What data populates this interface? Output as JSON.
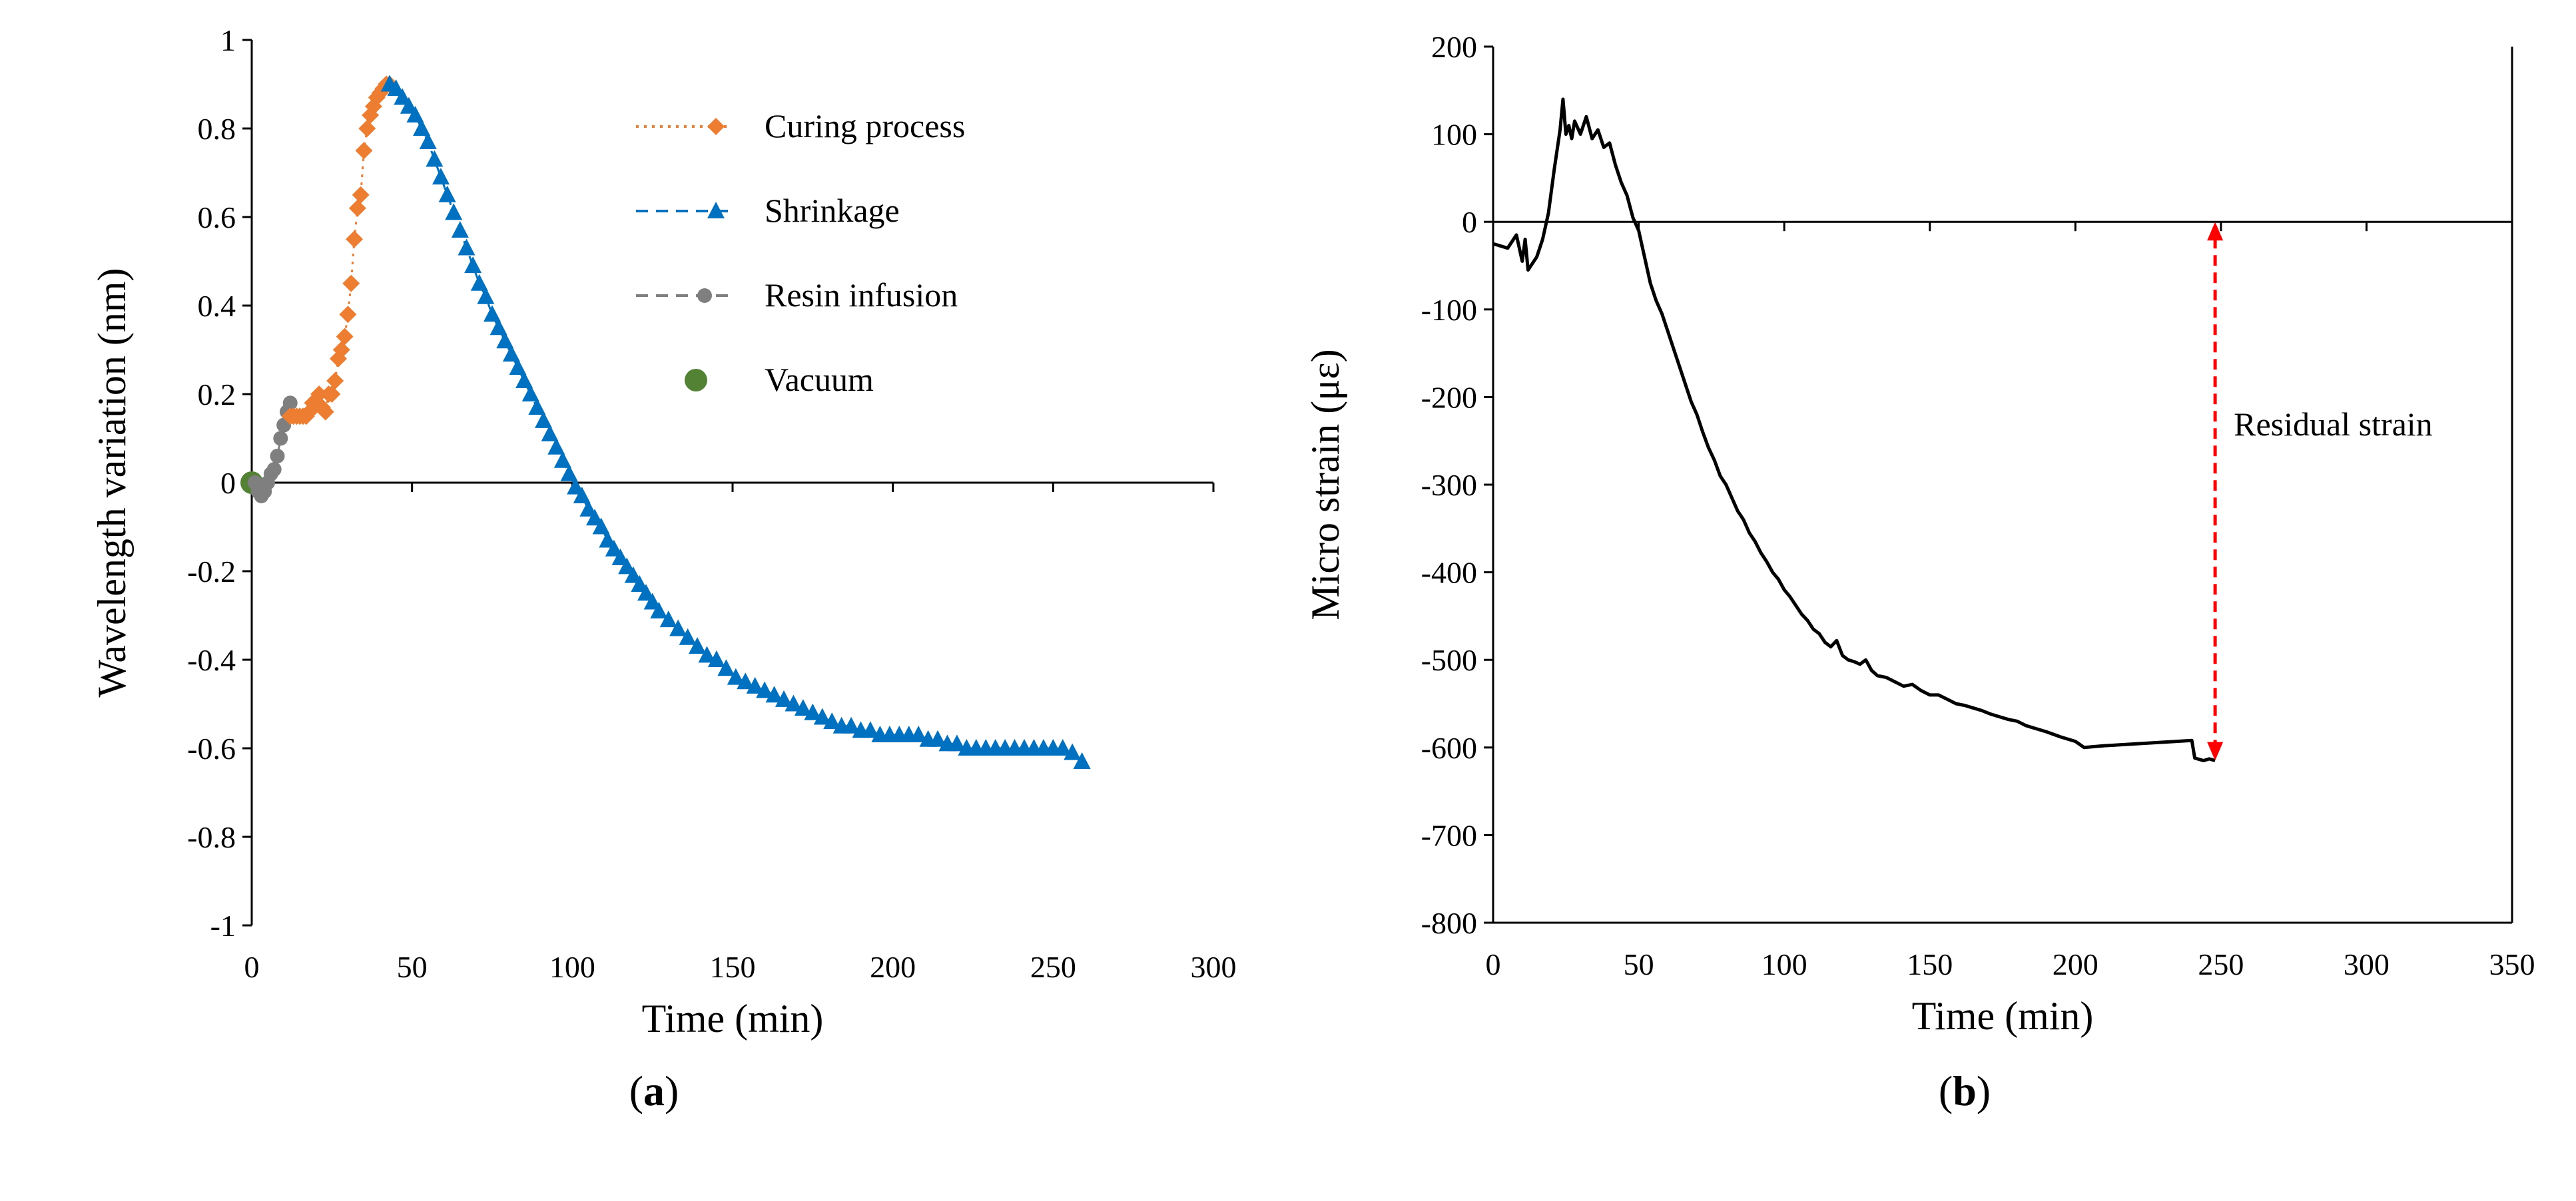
{
  "colors": {
    "curing": "#ED7D31",
    "shrinkage": "#0070C0",
    "resin": "#7F7F7F",
    "vacuum": "#548235",
    "strain": "#000000",
    "residual": "#FF0000"
  },
  "chart_data": [
    {
      "id": "a",
      "type": "scatter-line",
      "caption_paren_open": "(",
      "caption_letter": "a",
      "caption_paren_close": ")",
      "xlabel": "Time (min)",
      "ylabel": "Wavelength variation (nm)",
      "xlim": [
        0,
        300
      ],
      "ylim": [
        -1,
        1
      ],
      "xticks": [
        0,
        50,
        100,
        150,
        200,
        250,
        300
      ],
      "yticks": [
        -1,
        -0.8,
        -0.6,
        -0.4,
        -0.2,
        0,
        0.2,
        0.4,
        0.6,
        0.8,
        1
      ],
      "ytick_labels": [
        "-1",
        "-0.8",
        "-0.6",
        "-0.4",
        "-0.2",
        "0",
        "0.2",
        "0.4",
        "0.6",
        "0.8",
        "1"
      ],
      "legend": [
        {
          "key": "curing",
          "label": "Curing process",
          "marker": "diamond",
          "line": "dotted"
        },
        {
          "key": "shrinkage",
          "label": "Shrinkage",
          "marker": "triangle",
          "line": "dashed"
        },
        {
          "key": "resin",
          "label": "Resin infusion",
          "marker": "circle",
          "line": "dashed"
        },
        {
          "key": "vacuum",
          "label": "Vacuum",
          "marker": "big-circle",
          "line": "none"
        }
      ],
      "series": [
        {
          "name": "Vacuum",
          "key": "vacuum",
          "marker": "big-circle",
          "x": [
            0
          ],
          "y": [
            0
          ]
        },
        {
          "name": "Resin infusion",
          "key": "resin",
          "marker": "circle",
          "x": [
            1,
            2,
            3,
            4,
            5,
            6,
            7,
            8,
            9,
            10,
            11,
            12
          ],
          "y": [
            0,
            -0.02,
            -0.03,
            -0.02,
            0,
            0.02,
            0.03,
            0.06,
            0.1,
            0.13,
            0.16,
            0.18
          ]
        },
        {
          "name": "Curing process",
          "key": "curing",
          "marker": "diamond",
          "x": [
            12,
            13,
            14,
            15,
            16,
            17,
            18,
            19,
            20,
            21,
            22,
            23,
            24,
            25,
            26,
            27,
            28,
            29,
            30,
            31,
            32,
            33,
            34,
            35,
            36,
            37,
            38,
            39,
            40,
            41,
            42,
            43
          ],
          "y": [
            0.15,
            0.15,
            0.15,
            0.15,
            0.15,
            0.15,
            0.16,
            0.18,
            0.18,
            0.2,
            0.17,
            0.16,
            0.2,
            0.2,
            0.23,
            0.28,
            0.3,
            0.33,
            0.38,
            0.45,
            0.55,
            0.62,
            0.65,
            0.75,
            0.8,
            0.83,
            0.85,
            0.87,
            0.88,
            0.89,
            0.9,
            0.9
          ]
        },
        {
          "name": "Shrinkage",
          "key": "shrinkage",
          "marker": "triangle",
          "x": [
            43,
            45,
            47,
            49,
            51,
            53,
            55,
            57,
            59,
            61,
            63,
            65,
            67,
            69,
            71,
            73,
            75,
            77,
            79,
            81,
            83,
            85,
            87,
            89,
            91,
            93,
            95,
            97,
            99,
            101,
            103,
            105,
            107,
            109,
            111,
            113,
            115,
            117,
            119,
            121,
            123,
            125,
            127,
            130,
            133,
            136,
            139,
            142,
            145,
            148,
            151,
            154,
            157,
            160,
            163,
            166,
            169,
            172,
            175,
            178,
            181,
            184,
            187,
            190,
            193,
            196,
            199,
            202,
            205,
            208,
            211,
            214,
            217,
            220,
            223,
            226,
            229,
            232,
            235,
            238,
            241,
            244,
            247,
            250,
            253,
            256,
            259
          ],
          "y": [
            0.9,
            0.89,
            0.87,
            0.85,
            0.83,
            0.8,
            0.77,
            0.73,
            0.69,
            0.65,
            0.61,
            0.57,
            0.53,
            0.49,
            0.45,
            0.42,
            0.38,
            0.35,
            0.32,
            0.29,
            0.26,
            0.23,
            0.2,
            0.17,
            0.14,
            0.11,
            0.08,
            0.05,
            0.02,
            -0.01,
            -0.03,
            -0.06,
            -0.08,
            -0.1,
            -0.13,
            -0.15,
            -0.17,
            -0.19,
            -0.21,
            -0.23,
            -0.25,
            -0.27,
            -0.29,
            -0.31,
            -0.33,
            -0.35,
            -0.37,
            -0.39,
            -0.4,
            -0.42,
            -0.44,
            -0.45,
            -0.46,
            -0.47,
            -0.48,
            -0.49,
            -0.5,
            -0.51,
            -0.52,
            -0.53,
            -0.54,
            -0.55,
            -0.55,
            -0.56,
            -0.56,
            -0.57,
            -0.57,
            -0.57,
            -0.57,
            -0.57,
            -0.58,
            -0.58,
            -0.59,
            -0.59,
            -0.6,
            -0.6,
            -0.6,
            -0.6,
            -0.6,
            -0.6,
            -0.6,
            -0.6,
            -0.6,
            -0.6,
            -0.6,
            -0.61,
            -0.63
          ]
        }
      ]
    },
    {
      "id": "b",
      "type": "line",
      "caption_paren_open": "(",
      "caption_letter": "b",
      "caption_paren_close": ")",
      "xlabel": "Time (min)",
      "ylabel": "Micro strain (με)",
      "xlim": [
        0,
        350
      ],
      "ylim": [
        -800,
        200
      ],
      "xticks": [
        0,
        50,
        100,
        150,
        200,
        250,
        300,
        350
      ],
      "yticks": [
        -800,
        -700,
        -600,
        -500,
        -400,
        -300,
        -200,
        -100,
        0,
        100,
        200
      ],
      "annotation": {
        "label": "Residual strain",
        "x": 248,
        "y_from": 0,
        "y_to": -615
      },
      "series": [
        {
          "name": "Micro strain",
          "x": [
            0,
            5,
            8,
            10,
            11,
            12,
            13,
            15,
            17,
            19,
            21,
            23,
            24,
            25,
            26,
            27,
            28,
            30,
            32,
            34,
            36,
            38,
            40,
            42,
            44,
            46,
            48,
            50,
            52,
            54,
            56,
            58,
            60,
            62,
            64,
            66,
            68,
            70,
            72,
            74,
            76,
            78,
            80,
            82,
            84,
            86,
            88,
            90,
            92,
            94,
            96,
            98,
            100,
            102,
            104,
            106,
            108,
            110,
            112,
            114,
            116,
            118,
            120,
            122,
            124,
            126,
            128,
            130,
            132,
            135,
            138,
            141,
            144,
            147,
            150,
            153,
            156,
            159,
            162,
            165,
            168,
            171,
            174,
            177,
            180,
            183,
            186,
            190,
            195,
            200,
            203,
            210,
            220,
            230,
            240,
            241,
            244,
            246,
            248
          ],
          "y": [
            -25,
            -30,
            -15,
            -45,
            -20,
            -55,
            -50,
            -40,
            -20,
            10,
            60,
            105,
            140,
            100,
            110,
            95,
            115,
            100,
            120,
            95,
            105,
            85,
            90,
            65,
            45,
            30,
            5,
            -10,
            -40,
            -70,
            -90,
            -105,
            -125,
            -145,
            -165,
            -185,
            -205,
            -220,
            -240,
            -258,
            -272,
            -290,
            -300,
            -315,
            -330,
            -340,
            -355,
            -365,
            -378,
            -388,
            -400,
            -408,
            -420,
            -428,
            -438,
            -448,
            -455,
            -465,
            -470,
            -480,
            -485,
            -478,
            -495,
            -500,
            -502,
            -505,
            -500,
            -512,
            -518,
            -520,
            -525,
            -530,
            -528,
            -535,
            -540,
            -540,
            -545,
            -550,
            -552,
            -555,
            -558,
            -562,
            -565,
            -568,
            -570,
            -575,
            -578,
            -582,
            -588,
            -593,
            -600,
            -598,
            -596,
            -594,
            -592,
            -612,
            -615,
            -613,
            -615
          ]
        }
      ]
    }
  ]
}
